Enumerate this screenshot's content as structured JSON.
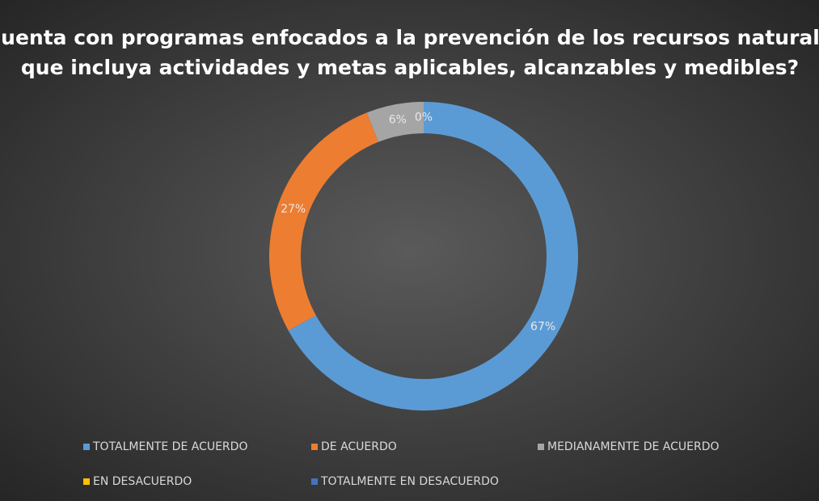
{
  "chart_data": {
    "type": "doughnut",
    "title": [
      "¿Cuenta con programas enfocados a la prevención de los recursos naturales",
      "que incluya actividades y metas aplicables, alcanzables y medibles?"
    ],
    "categories": [
      "TOTALMENTE DE ACUERDO",
      "DE ACUERDO",
      "MEDIANAMENTE DE ACUERDO",
      "EN DESACUERDO",
      "TOTALMENTE EN DESACUERDO"
    ],
    "values": [
      67,
      27,
      6,
      0,
      0
    ],
    "value_labels": [
      "67%",
      "27%",
      "6%",
      "0%",
      null
    ],
    "colors": [
      "#5b9bd5",
      "#ed7d31",
      "#a5a5a5",
      "#ffc000",
      "#4472c4"
    ],
    "legend": "bottom"
  }
}
